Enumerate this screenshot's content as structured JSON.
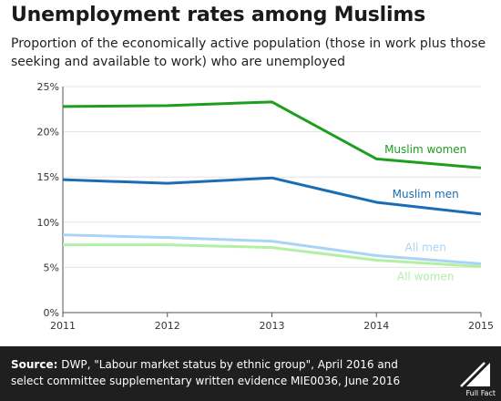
{
  "title": "Unemployment rates among Muslims",
  "subtitle": "Proportion of the economically active population (those in work plus those seeking and available to work) who are unemployed",
  "chart_data": {
    "type": "line",
    "x": [
      2011,
      2012,
      2013,
      2014,
      2015
    ],
    "ylim": [
      0,
      25
    ],
    "yticks": [
      "0%",
      "5%",
      "10%",
      "15%",
      "20%",
      "25%"
    ],
    "xticks": [
      "2011",
      "2012",
      "2013",
      "2014",
      "2015"
    ],
    "grid": "horizontal",
    "series": [
      {
        "name": "Muslim women",
        "values": [
          22.8,
          22.9,
          23.3,
          17.0,
          16.0
        ],
        "color": "#1e9e1e"
      },
      {
        "name": "Muslim men",
        "values": [
          14.7,
          14.3,
          14.9,
          12.2,
          10.9
        ],
        "color": "#1a6db5"
      },
      {
        "name": "All men",
        "values": [
          8.6,
          8.3,
          7.9,
          6.3,
          5.4
        ],
        "color": "#a9d4f5"
      },
      {
        "name": "All women",
        "values": [
          7.5,
          7.5,
          7.2,
          5.8,
          5.1
        ],
        "color": "#b3f0a3"
      }
    ]
  },
  "footer": {
    "source_label": "Source:",
    "source_text": " DWP, \"Labour market status by ethnic group\", April 2016 and select committee supplementary written evidence MIE0036, June 2016"
  },
  "logo": {
    "text": "Full Fact"
  }
}
